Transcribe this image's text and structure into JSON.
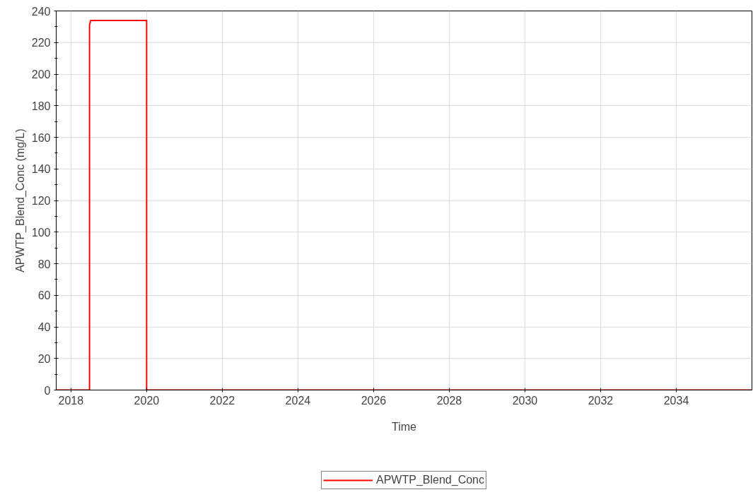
{
  "chart_data": {
    "type": "line",
    "xlabel": "Time",
    "ylabel": "APWTP_Blend_Conc (mg/L)",
    "series": [
      {
        "name": "APWTP_Blend_Conc",
        "color": "#ff0000",
        "x": [
          2017.61,
          2018.49,
          2018.49,
          2018.52,
          2019.99,
          2020.0,
          2020.0,
          2036.0
        ],
        "values": [
          0,
          0,
          231,
          234,
          234,
          234,
          0,
          0
        ]
      }
    ],
    "xlim": [
      2017.61,
      2036.0
    ],
    "xticks": [
      2018,
      2020,
      2022,
      2024,
      2026,
      2028,
      2030,
      2032,
      2034
    ],
    "ylim": [
      0,
      240
    ],
    "yticks": [
      0,
      20,
      40,
      60,
      80,
      100,
      120,
      140,
      160,
      180,
      200,
      220,
      240
    ],
    "grid": true,
    "legend": "bottom",
    "marker": "none",
    "line_style": "solid"
  }
}
